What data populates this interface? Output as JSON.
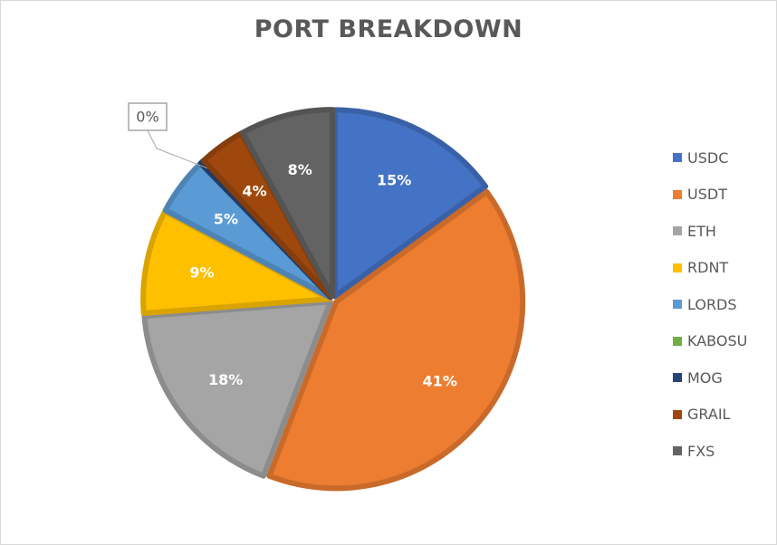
{
  "chart_data": {
    "type": "pie",
    "title": "PORT BREAKDOWN",
    "categories": [
      "USDC",
      "USDT",
      "ETH",
      "RDNT",
      "LORDS",
      "KABOSU",
      "MOG",
      "GRAIL",
      "FXS"
    ],
    "values": [
      15,
      41,
      18,
      9,
      5,
      0,
      0.3,
      4,
      8
    ],
    "labels": [
      "15%",
      "41%",
      "18%",
      "9%",
      "5%",
      "",
      "0%",
      "4%",
      "8%"
    ],
    "colors": [
      "#4472C4",
      "#ED7D31",
      "#A5A5A5",
      "#FFC000",
      "#5B9BD5",
      "#70AD47",
      "#264478",
      "#9E480E",
      "#636363"
    ],
    "legend_position": "right",
    "start_angle_deg": 0,
    "direction": "clockwise"
  }
}
